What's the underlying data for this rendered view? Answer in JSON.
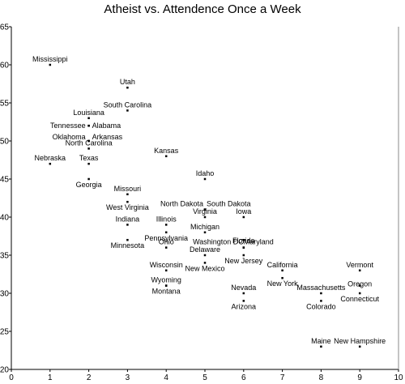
{
  "chart_data": {
    "type": "scatter",
    "title": "Atheist vs. Attendence Once a Week",
    "xlabel": "",
    "ylabel": "",
    "xlim": [
      0,
      10
    ],
    "ylim": [
      20,
      65
    ],
    "x_ticks": [
      "0",
      "1",
      "2",
      "3",
      "4",
      "5",
      "6",
      "7",
      "8",
      "9",
      "10"
    ],
    "y_ticks": [
      "20",
      "25",
      "30",
      "35",
      "40",
      "45",
      "50",
      "55",
      "60",
      "65"
    ],
    "grid": false,
    "legend": "none",
    "marker_color": "#000000",
    "points": [
      {
        "label": "Mississippi",
        "x": 1,
        "y": 60
      },
      {
        "label": "Utah",
        "x": 3,
        "y": 57
      },
      {
        "label": "South Carolina",
        "x": 3,
        "y": 54
      },
      {
        "label": "Louisiana",
        "x": 2,
        "y": 53
      },
      {
        "label": "Tennessee",
        "x": 2,
        "y": 52
      },
      {
        "label": "Alabama",
        "x": 2,
        "y": 52
      },
      {
        "label": "Oklahoma",
        "x": 2,
        "y": 50
      },
      {
        "label": "Arkansas",
        "x": 2,
        "y": 50
      },
      {
        "label": "North Carolina",
        "x": 2,
        "y": 49
      },
      {
        "label": "Kansas",
        "x": 4,
        "y": 48
      },
      {
        "label": "Nebraska",
        "x": 1,
        "y": 47
      },
      {
        "label": "Texas",
        "x": 2,
        "y": 47
      },
      {
        "label": "Idaho",
        "x": 5,
        "y": 45
      },
      {
        "label": "Georgia",
        "x": 2,
        "y": 45
      },
      {
        "label": "Missouri",
        "x": 3,
        "y": 43
      },
      {
        "label": "West Virginia",
        "x": 3,
        "y": 42
      },
      {
        "label": "North Dakota",
        "x": 5,
        "y": 41
      },
      {
        "label": "South Dakota",
        "x": 5,
        "y": 41
      },
      {
        "label": "Iowa",
        "x": 6,
        "y": 40
      },
      {
        "label": "Virginia",
        "x": 5,
        "y": 40
      },
      {
        "label": "Indiana",
        "x": 3,
        "y": 39
      },
      {
        "label": "Illinois",
        "x": 4,
        "y": 39
      },
      {
        "label": "Michigan",
        "x": 5,
        "y": 38
      },
      {
        "label": "Pennsylvania",
        "x": 4,
        "y": 38
      },
      {
        "label": "Florida",
        "x": 6,
        "y": 37
      },
      {
        "label": "Minnesota",
        "x": 3,
        "y": 37
      },
      {
        "label": "Washington DC",
        "x": 6,
        "y": 36
      },
      {
        "label": "Maryland",
        "x": 6,
        "y": 36
      },
      {
        "label": "Ohio",
        "x": 4,
        "y": 36
      },
      {
        "label": "Delaware",
        "x": 5,
        "y": 35
      },
      {
        "label": "New Jersey",
        "x": 6,
        "y": 35
      },
      {
        "label": "California",
        "x": 7,
        "y": 33
      },
      {
        "label": "Vermont",
        "x": 9,
        "y": 33
      },
      {
        "label": "Wisconsin",
        "x": 4,
        "y": 33
      },
      {
        "label": "New Mexico",
        "x": 5,
        "y": 34
      },
      {
        "label": "Wyoming",
        "x": 4,
        "y": 31
      },
      {
        "label": "New York",
        "x": 7,
        "y": 32
      },
      {
        "label": "Oregon",
        "x": 9,
        "y": 31
      },
      {
        "label": "Massachusetts",
        "x": 8,
        "y": 30
      },
      {
        "label": "Montana",
        "x": 4,
        "y": 31
      },
      {
        "label": "Nevada",
        "x": 6,
        "y": 30
      },
      {
        "label": "Connecticut",
        "x": 9,
        "y": 30
      },
      {
        "label": "Colorado",
        "x": 8,
        "y": 29
      },
      {
        "label": "Arizona",
        "x": 6,
        "y": 29
      },
      {
        "label": "Maine",
        "x": 8,
        "y": 23
      },
      {
        "label": "New Hampshire",
        "x": 9,
        "y": 23
      }
    ]
  }
}
